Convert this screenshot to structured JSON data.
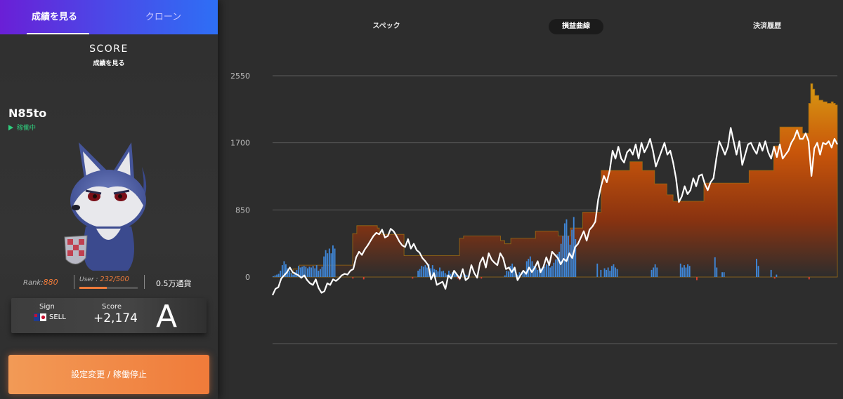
{
  "left_panel": {
    "tabs": [
      {
        "label": "成績を見る",
        "active": true
      },
      {
        "label": "クローン",
        "active": false
      }
    ],
    "section_title": "SCORE",
    "section_subtitle": "成績を見る",
    "bot_name": "N85to",
    "status": "稼働中",
    "rank_label": "Rank:",
    "rank_value": "880",
    "user_label": "User : ",
    "user_value": "232/500",
    "user_progress": 0.464,
    "currency": "0.5万通貨",
    "score_card": {
      "sign_label": "Sign",
      "sign_value": "SELL",
      "flag_icon": "au-jp-flag-icon",
      "score_label": "Score",
      "score_value": "+2,174",
      "grade": "A"
    },
    "action_button": "設定変更 / 稼働停止"
  },
  "right_panel": {
    "tabs": [
      {
        "label": "スペック",
        "active": false
      },
      {
        "label": "損益曲線",
        "active": true
      },
      {
        "label": "決済履歴",
        "active": false
      }
    ]
  },
  "colors": {
    "accent_orange": "#f07b3a",
    "status_green": "#2fcf7e",
    "bar_blue": "#3f86d6",
    "bar_red": "#d9412e",
    "area_top": "#d89a12",
    "area_bottom": "#2d2d2d",
    "line_white": "#ffffff",
    "tab_gradient_start": "#6a1fd6",
    "tab_gradient_end": "#2e6ff5"
  },
  "chart_data": {
    "type": "line",
    "yticks": [
      "2550",
      "1700",
      "850",
      "0"
    ],
    "ylim": [
      -850,
      2550
    ],
    "grid": true,
    "series": [
      {
        "kind": "line",
        "values": [
          -230,
          -150,
          -130,
          -20,
          20,
          60,
          120,
          60,
          40,
          20,
          -10,
          20,
          -40,
          -80,
          -100,
          -30,
          -140,
          -200,
          -180,
          -80,
          -100,
          -30,
          -50,
          -20,
          20,
          40,
          30,
          80,
          100,
          250,
          320,
          280,
          350,
          400,
          460,
          520,
          560,
          540,
          600,
          500,
          520,
          610,
          580,
          520,
          450,
          400,
          380,
          480,
          360,
          420,
          340,
          310,
          240,
          200,
          150,
          -30,
          50,
          -100,
          -80,
          -60,
          -150,
          20,
          -20,
          80,
          30,
          -20,
          100,
          -40,
          -10,
          150,
          50,
          -10,
          180,
          250,
          120,
          300,
          220,
          180,
          150,
          300,
          240,
          100,
          120,
          60,
          120,
          -40,
          20,
          80,
          40,
          120,
          60,
          120,
          200,
          60,
          130,
          250,
          150,
          320,
          280,
          240,
          160,
          230,
          200,
          300,
          240,
          380,
          420,
          500,
          580,
          460,
          600,
          640,
          700,
          980,
          1150,
          1280,
          1200,
          1350,
          1600,
          1500,
          1650,
          1500,
          1450,
          1580,
          1620,
          1550,
          1680,
          1500,
          1700,
          1580,
          1650,
          1750,
          1600,
          1400,
          1500,
          1600,
          1700,
          1550,
          1600,
          1450,
          1250,
          950,
          1020,
          1150,
          1050,
          1100,
          1250,
          1150,
          1280,
          1300,
          1180,
          1100,
          1200,
          1250,
          1500,
          1720,
          1640,
          1550,
          1650,
          1890,
          1720,
          1550,
          1720,
          1420,
          1550,
          1680,
          1700,
          1620,
          1560,
          1700,
          1600,
          1720,
          1580,
          1500,
          1650,
          1520,
          1680,
          1500,
          1550,
          1600,
          1700,
          1760,
          1860,
          1750,
          1750,
          1820,
          1720,
          1280,
          1630,
          1700,
          1550,
          1700,
          1680,
          1720,
          1640,
          1750,
          1680
        ]
      },
      {
        "kind": "area",
        "values": [
          0,
          0,
          0,
          0,
          0,
          0,
          40,
          40,
          40,
          40,
          100,
          100,
          100,
          150,
          150,
          150,
          150,
          150,
          150,
          150,
          150,
          150,
          150,
          150,
          150,
          150,
          150,
          150,
          150,
          150,
          150,
          150,
          150,
          150,
          150,
          150,
          150,
          150,
          150,
          550,
          550,
          650,
          650,
          650,
          650,
          650,
          650,
          650,
          650,
          650,
          650,
          620,
          580,
          540,
          540,
          540,
          540,
          540,
          540,
          540,
          540,
          540,
          540,
          540,
          270,
          270,
          270,
          270,
          270,
          270,
          270,
          270,
          270,
          270,
          270,
          270,
          270,
          270,
          270,
          270,
          270,
          270,
          270,
          270,
          270,
          270,
          270,
          270,
          270,
          270,
          270,
          490,
          490,
          520,
          520,
          520,
          520,
          520,
          520,
          520,
          520,
          520,
          520,
          520,
          520,
          520,
          520,
          520,
          520,
          520,
          520,
          460,
          460,
          420,
          420,
          420,
          490,
          490,
          490,
          490,
          490,
          490,
          490,
          490,
          490,
          490,
          490,
          490,
          580,
          580,
          580,
          580,
          580,
          580,
          580,
          580,
          580,
          580,
          580,
          520,
          520,
          520,
          520,
          520,
          520,
          620,
          620,
          620,
          620,
          620,
          620,
          820,
          820,
          820,
          820,
          820,
          820,
          820,
          820,
          820,
          1350,
          1350,
          1350,
          1350,
          1350,
          1350,
          1350,
          1350,
          1350,
          1350,
          1350,
          1350,
          1350,
          1350,
          1460,
          1460,
          1460,
          1460,
          1460,
          1460,
          1350,
          1350,
          1350,
          1350,
          1350,
          1350,
          1180,
          1180,
          1180,
          1180,
          1180,
          1180,
          1040,
          1040,
          1040,
          960,
          960,
          960,
          960,
          960,
          960,
          960,
          960,
          960,
          960,
          960,
          960,
          960,
          960,
          960,
          1190,
          1190,
          1190,
          1190,
          1190,
          1190,
          1190,
          1190,
          1190,
          1190,
          1190,
          1190,
          1190,
          1190,
          1190,
          1190,
          1190,
          1190,
          1190,
          1190,
          1190,
          1190,
          1350,
          1350,
          1350,
          1350,
          1350,
          1350,
          1350,
          1350,
          1350,
          1350,
          1350,
          1350,
          1660,
          1660,
          1660,
          1900,
          1900,
          1900,
          1900,
          1900,
          1900,
          1900,
          1900,
          1900,
          1900,
          1900,
          1820,
          1820,
          1820,
          2200,
          2450,
          2380,
          2300,
          2300,
          2240,
          2240,
          2220,
          2220,
          2200,
          2200,
          2220,
          2200,
          2180
        ]
      },
      {
        "kind": "bars",
        "values": [
          10,
          20,
          30,
          40,
          80,
          150,
          200,
          160,
          110,
          80,
          50,
          30,
          60,
          90,
          140,
          120,
          130,
          140,
          130,
          110,
          130,
          120,
          140,
          110,
          150,
          80,
          100,
          130,
          260,
          340,
          300,
          360,
          300,
          400,
          360,
          0,
          0,
          0,
          0,
          0,
          0,
          0,
          0,
          0,
          -20,
          0,
          0,
          0,
          0,
          0,
          -30,
          0,
          0,
          0,
          0,
          0,
          0,
          0,
          0,
          0,
          0,
          0,
          0,
          0,
          0,
          0,
          0,
          0,
          0,
          0,
          0,
          0,
          0,
          0,
          0,
          0,
          0,
          -20,
          0,
          0,
          80,
          100,
          140,
          130,
          150,
          120,
          160,
          110,
          150,
          100,
          90,
          70,
          120,
          70,
          80,
          50,
          30,
          80,
          40,
          60,
          50,
          40,
          -20,
          -40,
          30,
          0,
          30,
          20,
          0,
          0,
          0,
          0,
          0,
          0,
          0,
          -20,
          0,
          0,
          0,
          0,
          0,
          0,
          0,
          0,
          0,
          0,
          0,
          0,
          20,
          80,
          70,
          140,
          170,
          110,
          40,
          30,
          60,
          0,
          60,
          80,
          200,
          230,
          260,
          200,
          140,
          120,
          90,
          100,
          110,
          120,
          130,
          160,
          150,
          120,
          140,
          180,
          220,
          290,
          320,
          420,
          520,
          680,
          730,
          520,
          410,
          600,
          760,
          480,
          0,
          0,
          0,
          0,
          0,
          0,
          0,
          0,
          0,
          0,
          0,
          170,
          0,
          90,
          0,
          110,
          90,
          120,
          80,
          140,
          160,
          120,
          100,
          0,
          0,
          0,
          0,
          0,
          0,
          0,
          0,
          0,
          0,
          0,
          0,
          0,
          0,
          0,
          0,
          0,
          0,
          90,
          120,
          160,
          120,
          0,
          0,
          0,
          0,
          0,
          0,
          0,
          0,
          0,
          0,
          0,
          0,
          170,
          120,
          150,
          120,
          160,
          140,
          0,
          0,
          0,
          -40,
          0,
          0,
          0,
          0,
          0,
          0,
          0,
          0,
          0,
          250,
          120,
          0,
          0,
          60,
          60,
          0,
          0,
          0,
          0,
          0,
          0,
          0,
          0,
          0,
          0,
          0,
          0,
          0,
          0,
          0,
          0,
          0,
          230,
          140,
          0,
          0,
          0,
          0,
          0,
          0,
          90,
          0,
          -20,
          30,
          0,
          0,
          0,
          0,
          0,
          0,
          0,
          0,
          0,
          0,
          0,
          0,
          0,
          0,
          0,
          0,
          0,
          -30,
          0,
          0,
          0,
          0,
          0,
          0,
          0,
          0,
          0,
          0,
          0,
          0,
          0,
          0,
          0
        ]
      }
    ]
  }
}
